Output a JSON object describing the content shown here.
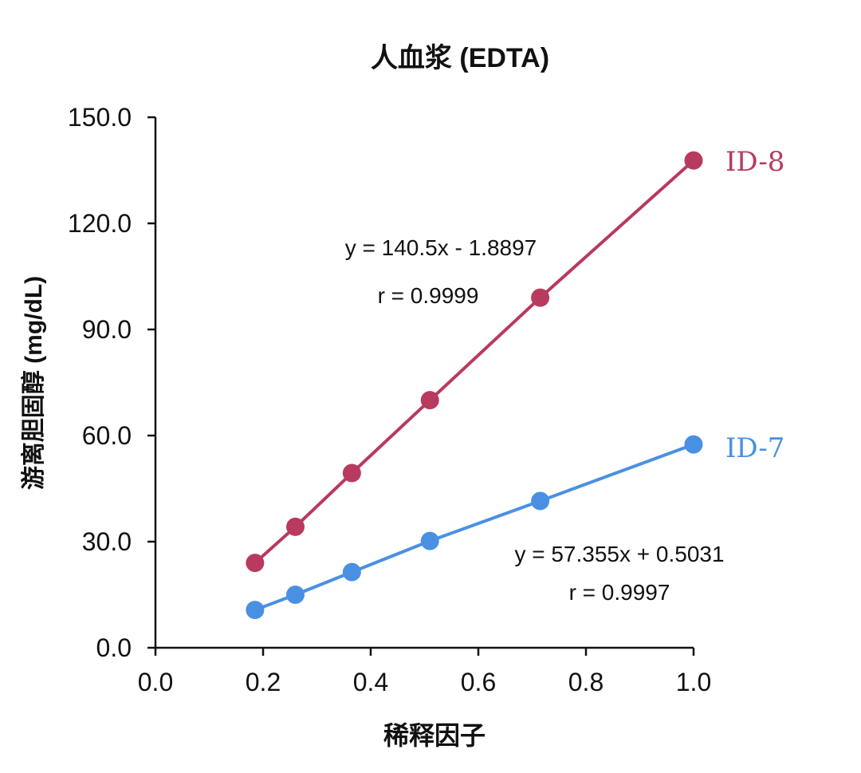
{
  "chart_data": {
    "type": "scatter",
    "title": "人血浆 (EDTA)",
    "xlabel": "稀释因子",
    "ylabel": "游离胆固醇 (mg/dL)",
    "xlim": [
      0.0,
      1.0
    ],
    "ylim": [
      0.0,
      150.0
    ],
    "x_ticks": [
      "0.0",
      "0.2",
      "0.4",
      "0.6",
      "0.8",
      "1.0"
    ],
    "y_ticks": [
      "0.0",
      "30.0",
      "60.0",
      "90.0",
      "120.0",
      "150.0"
    ],
    "grid": false,
    "legend": "none",
    "series": [
      {
        "name": "ID-8",
        "color": "#b83a5e",
        "x": [
          0.185,
          0.26,
          0.365,
          0.51,
          0.715,
          1.0
        ],
        "y": [
          24.0,
          34.2,
          49.4,
          70.0,
          99.0,
          137.8
        ],
        "equation": "y = 140.5x - 1.8897",
        "r": "r = 0.9999"
      },
      {
        "name": "ID-7",
        "color": "#4a90e2",
        "x": [
          0.185,
          0.26,
          0.365,
          0.51,
          0.715,
          1.0
        ],
        "y": [
          10.7,
          15.0,
          21.4,
          30.2,
          41.5,
          57.5
        ],
        "equation": "y = 57.355x + 0.5031",
        "r": "r = 0.9997"
      }
    ]
  }
}
